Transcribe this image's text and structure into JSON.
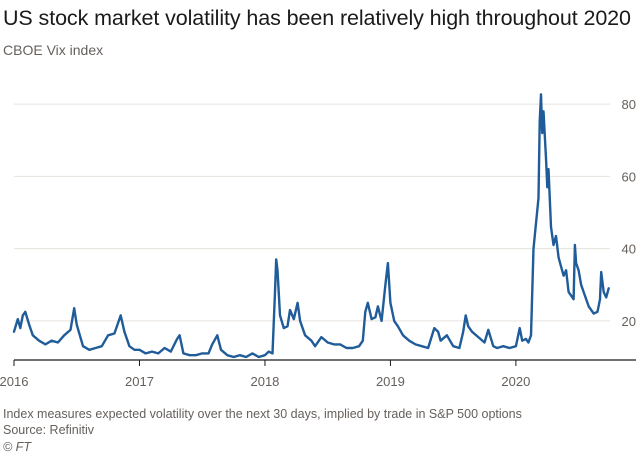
{
  "header": {
    "title": "US stock market volatility has been relatively high throughout 2020",
    "subtitle": "CBOE Vix index"
  },
  "footer": {
    "note": "Index measures expected volatility over the next 30 days, implied by trade in S&P 500 options",
    "source": "Source: Refinitiv",
    "credit": "© FT"
  },
  "colors": {
    "line": "#1f5c99",
    "grid": "#e6e2dd",
    "axis_text": "#66605c",
    "baseline": "#1a1a1a"
  },
  "chart_data": {
    "type": "line",
    "title": "US stock market volatility has been relatively high throughout 2020",
    "subtitle": "CBOE Vix index",
    "xlabel": "",
    "ylabel": "",
    "xlim": [
      2016.0,
      2020.75
    ],
    "ylim": [
      10,
      85
    ],
    "y_ticks": [
      20,
      40,
      60,
      80
    ],
    "x_ticks": [
      {
        "value": 2016.0,
        "label": "2016"
      },
      {
        "value": 2017.0,
        "label": "2017"
      },
      {
        "value": 2018.0,
        "label": "2018"
      },
      {
        "value": 2019.0,
        "label": "2019"
      },
      {
        "value": 2020.0,
        "label": "2020"
      }
    ],
    "y_axis_position": "right",
    "grid": true,
    "series": [
      {
        "values": [
          [
            2016.0,
            17.0
          ],
          [
            2016.03,
            20.5
          ],
          [
            2016.05,
            18.0
          ],
          [
            2016.07,
            21.5
          ],
          [
            2016.09,
            22.5
          ],
          [
            2016.12,
            19.0
          ],
          [
            2016.15,
            16.0
          ],
          [
            2016.2,
            14.5
          ],
          [
            2016.25,
            13.5
          ],
          [
            2016.3,
            14.5
          ],
          [
            2016.35,
            14.0
          ],
          [
            2016.4,
            16.0
          ],
          [
            2016.45,
            17.5
          ],
          [
            2016.48,
            23.5
          ],
          [
            2016.5,
            19.0
          ],
          [
            2016.55,
            13.0
          ],
          [
            2016.6,
            12.0
          ],
          [
            2016.65,
            12.5
          ],
          [
            2016.7,
            13.0
          ],
          [
            2016.75,
            16.0
          ],
          [
            2016.8,
            16.5
          ],
          [
            2016.85,
            21.5
          ],
          [
            2016.88,
            17.0
          ],
          [
            2016.92,
            13.0
          ],
          [
            2016.96,
            12.0
          ],
          [
            2017.0,
            12.0
          ],
          [
            2017.05,
            11.0
          ],
          [
            2017.1,
            11.5
          ],
          [
            2017.15,
            11.0
          ],
          [
            2017.2,
            12.5
          ],
          [
            2017.25,
            11.5
          ],
          [
            2017.3,
            15.0
          ],
          [
            2017.32,
            16.0
          ],
          [
            2017.35,
            11.0
          ],
          [
            2017.4,
            10.5
          ],
          [
            2017.45,
            10.5
          ],
          [
            2017.5,
            11.0
          ],
          [
            2017.55,
            11.0
          ],
          [
            2017.58,
            13.5
          ],
          [
            2017.62,
            16.0
          ],
          [
            2017.65,
            12.0
          ],
          [
            2017.7,
            10.5
          ],
          [
            2017.75,
            10.0
          ],
          [
            2017.8,
            10.5
          ],
          [
            2017.85,
            10.0
          ],
          [
            2017.9,
            11.0
          ],
          [
            2017.95,
            10.0
          ],
          [
            2018.0,
            10.5
          ],
          [
            2018.03,
            11.5
          ],
          [
            2018.06,
            11.0
          ],
          [
            2018.08,
            28.0
          ],
          [
            2018.09,
            37.0
          ],
          [
            2018.1,
            34.0
          ],
          [
            2018.12,
            21.5
          ],
          [
            2018.15,
            18.0
          ],
          [
            2018.18,
            18.5
          ],
          [
            2018.2,
            23.0
          ],
          [
            2018.23,
            20.5
          ],
          [
            2018.26,
            25.0
          ],
          [
            2018.28,
            20.0
          ],
          [
            2018.32,
            16.0
          ],
          [
            2018.37,
            14.5
          ],
          [
            2018.4,
            13.0
          ],
          [
            2018.45,
            15.5
          ],
          [
            2018.5,
            14.0
          ],
          [
            2018.55,
            13.5
          ],
          [
            2018.6,
            13.5
          ],
          [
            2018.65,
            12.5
          ],
          [
            2018.7,
            12.5
          ],
          [
            2018.75,
            13.0
          ],
          [
            2018.78,
            14.5
          ],
          [
            2018.8,
            22.5
          ],
          [
            2018.82,
            25.0
          ],
          [
            2018.85,
            20.5
          ],
          [
            2018.88,
            21.0
          ],
          [
            2018.9,
            24.0
          ],
          [
            2018.93,
            20.0
          ],
          [
            2018.96,
            30.0
          ],
          [
            2018.98,
            36.0
          ],
          [
            2019.0,
            25.0
          ],
          [
            2019.03,
            20.0
          ],
          [
            2019.06,
            18.5
          ],
          [
            2019.1,
            16.0
          ],
          [
            2019.15,
            14.5
          ],
          [
            2019.2,
            13.5
          ],
          [
            2019.25,
            13.0
          ],
          [
            2019.3,
            12.5
          ],
          [
            2019.35,
            18.0
          ],
          [
            2019.38,
            17.0
          ],
          [
            2019.4,
            14.5
          ],
          [
            2019.45,
            16.0
          ],
          [
            2019.5,
            13.0
          ],
          [
            2019.55,
            12.5
          ],
          [
            2019.58,
            17.0
          ],
          [
            2019.6,
            21.5
          ],
          [
            2019.62,
            18.5
          ],
          [
            2019.65,
            17.0
          ],
          [
            2019.7,
            15.5
          ],
          [
            2019.75,
            14.0
          ],
          [
            2019.78,
            17.5
          ],
          [
            2019.82,
            13.0
          ],
          [
            2019.85,
            12.5
          ],
          [
            2019.9,
            13.0
          ],
          [
            2019.95,
            12.5
          ],
          [
            2020.0,
            13.0
          ],
          [
            2020.03,
            18.0
          ],
          [
            2020.05,
            14.5
          ],
          [
            2020.08,
            15.0
          ],
          [
            2020.1,
            14.0
          ],
          [
            2020.12,
            16.0
          ],
          [
            2020.14,
            40.0
          ],
          [
            2020.16,
            47.0
          ],
          [
            2020.18,
            54.0
          ],
          [
            2020.19,
            75.0
          ],
          [
            2020.2,
            82.7
          ],
          [
            2020.21,
            72.0
          ],
          [
            2020.22,
            78.0
          ],
          [
            2020.24,
            65.0
          ],
          [
            2020.25,
            57.0
          ],
          [
            2020.26,
            62.0
          ],
          [
            2020.28,
            46.0
          ],
          [
            2020.3,
            41.0
          ],
          [
            2020.32,
            43.5
          ],
          [
            2020.34,
            37.5
          ],
          [
            2020.36,
            35.0
          ],
          [
            2020.38,
            32.5
          ],
          [
            2020.4,
            34.0
          ],
          [
            2020.42,
            28.0
          ],
          [
            2020.44,
            27.0
          ],
          [
            2020.46,
            26.0
          ],
          [
            2020.47,
            41.0
          ],
          [
            2020.48,
            36.0
          ],
          [
            2020.5,
            34.0
          ],
          [
            2020.52,
            30.0
          ],
          [
            2020.55,
            27.0
          ],
          [
            2020.58,
            24.0
          ],
          [
            2020.62,
            22.0
          ],
          [
            2020.65,
            22.5
          ],
          [
            2020.67,
            26.0
          ],
          [
            2020.68,
            33.5
          ],
          [
            2020.7,
            28.0
          ],
          [
            2020.72,
            26.5
          ],
          [
            2020.74,
            29.0
          ]
        ]
      }
    ]
  }
}
